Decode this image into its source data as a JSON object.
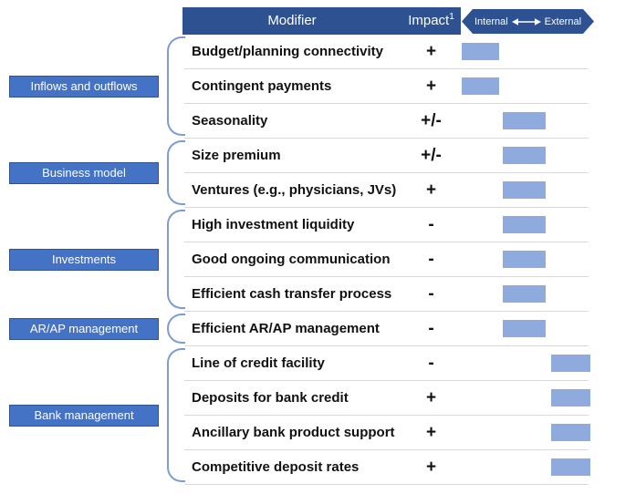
{
  "header": {
    "modifier_label": "Modifier",
    "impact_label": "Impact",
    "impact_footnote_marker": "1",
    "scale_left_label": "Internal",
    "scale_right_label": "External"
  },
  "colors": {
    "header_blue": "#2E5291",
    "category_fill": "#4472C4",
    "category_border": "#2F5496",
    "bar_fill": "#8FAADC",
    "brace_stroke": "#7E9CD3",
    "divider": "#D9D9D9"
  },
  "scale_positions": [
    "internal",
    "middle",
    "external"
  ],
  "groups": [
    {
      "label": "Inflows and outflows",
      "rows": [
        {
          "modifier": "Budget/planning connectivity",
          "impact": "+",
          "position": "internal"
        },
        {
          "modifier": "Contingent payments",
          "impact": "+",
          "position": "internal"
        },
        {
          "modifier": "Seasonality",
          "impact": "+/-",
          "position": "middle"
        }
      ]
    },
    {
      "label": "Business model",
      "rows": [
        {
          "modifier": "Size premium",
          "impact": "+/-",
          "position": "middle"
        },
        {
          "modifier": "Ventures (e.g., physicians, JVs)",
          "impact": "+",
          "position": "middle"
        }
      ]
    },
    {
      "label": "Investments",
      "rows": [
        {
          "modifier": "High investment liquidity",
          "impact": "-",
          "position": "middle"
        },
        {
          "modifier": "Good ongoing communication",
          "impact": "-",
          "position": "middle"
        },
        {
          "modifier": "Efficient cash transfer process",
          "impact": "-",
          "position": "middle"
        }
      ]
    },
    {
      "label": "AR/AP management",
      "rows": [
        {
          "modifier": "Efficient AR/AP management",
          "impact": "-",
          "position": "middle"
        }
      ]
    },
    {
      "label": "Bank management",
      "rows": [
        {
          "modifier": "Line of credit facility",
          "impact": "-",
          "position": "external"
        },
        {
          "modifier": "Deposits for bank credit",
          "impact": "+",
          "position": "external"
        },
        {
          "modifier": "Ancillary bank product support",
          "impact": "+",
          "position": "external"
        },
        {
          "modifier": "Competitive deposit rates",
          "impact": "+",
          "position": "external"
        }
      ]
    }
  ]
}
